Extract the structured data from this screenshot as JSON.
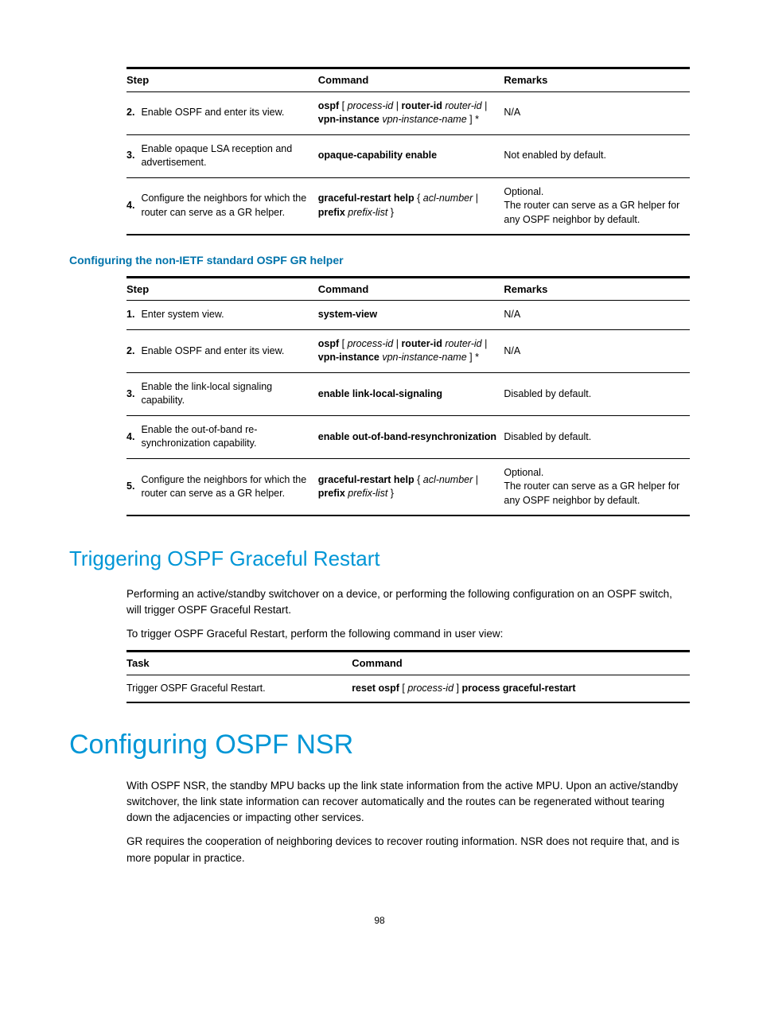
{
  "colors": {
    "heading": "#0096d6",
    "subhead": "#0073ab",
    "text": "#000000",
    "rule": "#000000",
    "bg": "#ffffff"
  },
  "fonts": {
    "body_size": 13,
    "h1_size": 34,
    "h2_size": 26,
    "subhead_size": 14
  },
  "table1": {
    "headers": {
      "step": "Step",
      "command": "Command",
      "remarks": "Remarks"
    },
    "rows": [
      {
        "num": "2.",
        "step": "Enable OSPF and enter its view.",
        "cmd": "<b>ospf</b> [ <i>process-id</i> | <b>router-id</b> <i>router-id</i> | <b>vpn-instance</b> <i>vpn-instance-name</i> ] *",
        "remarks": "N/A"
      },
      {
        "num": "3.",
        "step": "Enable opaque LSA reception and advertisement.",
        "cmd": "<b>opaque-capability enable</b>",
        "remarks": "Not enabled by default."
      },
      {
        "num": "4.",
        "step": "Configure the neighbors for which the router can serve as a GR helper.",
        "cmd": "<b>graceful-restart help</b> { <i>acl-number</i> | <b>prefix</b> <i>prefix-list</i> }",
        "remarks": "Optional.<br>The router can serve as a GR helper for any OSPF neighbor by default."
      }
    ]
  },
  "subhead": "Configuring the non-IETF standard OSPF GR helper",
  "table2": {
    "headers": {
      "step": "Step",
      "command": "Command",
      "remarks": "Remarks"
    },
    "rows": [
      {
        "num": "1.",
        "step": "Enter system view.",
        "cmd": "<b>system-view</b>",
        "remarks": "N/A"
      },
      {
        "num": "2.",
        "step": "Enable OSPF and enter its view.",
        "cmd": "<b>ospf</b> [ <i>process-id</i> | <b>router-id</b> <i>router-id</i> | <b>vpn-instance</b> <i>vpn-instance-name</i> ] *",
        "remarks": "N/A"
      },
      {
        "num": "3.",
        "step": "Enable the link-local signaling capability.",
        "cmd": "<b>enable link-local-signaling</b>",
        "remarks": "Disabled by default."
      },
      {
        "num": "4.",
        "step": "Enable the out-of-band re-synchronization capability.",
        "cmd": "<b>enable out-of-band-resynchronization</b>",
        "remarks": "Disabled by default."
      },
      {
        "num": "5.",
        "step": "Configure the neighbors for which the router can serve as a GR helper.",
        "cmd": "<b>graceful-restart help</b> { <i>acl-number</i> | <b>prefix</b> <i>prefix-list</i> }",
        "remarks": "Optional.<br>The router can serve as a GR helper for any OSPF neighbor by default."
      }
    ]
  },
  "h2": "Triggering OSPF Graceful Restart",
  "para1": "Performing an active/standby switchover on a device, or performing the following configuration on an OSPF switch, will trigger OSPF Graceful Restart.",
  "para2": "To trigger OSPF Graceful Restart, perform the following command in user view:",
  "table3": {
    "headers": {
      "task": "Task",
      "command": "Command"
    },
    "row": {
      "task": "Trigger OSPF Graceful Restart.",
      "cmd": "<b>reset ospf</b> [ <i>process-id</i> ] <b>process graceful-restart</b>"
    }
  },
  "h1": "Configuring OSPF NSR",
  "para3": "With OSPF NSR, the standby MPU backs up the link state information from the active MPU. Upon an active/standby switchover, the link state information can recover automatically and the routes can be regenerated without tearing down the adjacencies or impacting other services.",
  "para4": "GR requires the cooperation of neighboring devices to recover routing information. NSR does not require that, and is more popular in practice.",
  "pagenum": "98"
}
